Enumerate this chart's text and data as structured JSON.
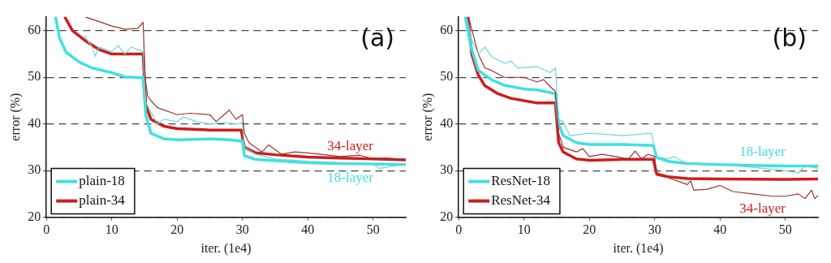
{
  "chart_data": [
    {
      "type": "line",
      "xlabel": "iter. (1e4)",
      "ylabel": "error (%)",
      "xlim": [
        0,
        55
      ],
      "ylim": [
        20,
        63
      ],
      "xticks": [
        0,
        10,
        20,
        30,
        40,
        50
      ],
      "yticks": [
        20,
        30,
        40,
        50,
        60
      ],
      "grid": "y",
      "legend": "bottom left",
      "annotations": [
        "(a)",
        "34-layer",
        "18-layer"
      ],
      "series": [
        {
          "color": "#a03030",
          "x": [
            6,
            8,
            10,
            11,
            12,
            14,
            14.8,
            15.1,
            15.5,
            16,
            17,
            20,
            22,
            25,
            26,
            28,
            29,
            30,
            30.3,
            31,
            33,
            34,
            36,
            38,
            40,
            42,
            45,
            48,
            50,
            52,
            55
          ],
          "values": [
            62.9,
            62,
            61,
            60.7,
            60.3,
            60.5,
            61.8,
            50,
            46,
            45,
            43.5,
            42,
            42.3,
            42,
            40.5,
            43,
            41,
            42,
            38,
            36,
            34,
            35.5,
            33.5,
            34,
            33.8,
            33.5,
            33,
            33.3,
            32.5,
            32.7,
            32.3
          ]
        },
        {
          "color": "#6ad8d8",
          "x": [
            5.8,
            7,
            7.5,
            8,
            10,
            11,
            12,
            13,
            14.8,
            15.1,
            16,
            17,
            18,
            20,
            21,
            23,
            25,
            27,
            29,
            30,
            30.3,
            32,
            35,
            40,
            45,
            50,
            51,
            55
          ],
          "values": [
            59,
            56.5,
            54.5,
            56.5,
            55.5,
            56.8,
            55,
            56.5,
            55.5,
            45,
            42.5,
            40,
            41,
            40.5,
            41.5,
            40.5,
            40,
            40.3,
            40,
            40.3,
            35,
            33.5,
            32.5,
            32,
            31.7,
            31.3,
            30.5,
            31.4
          ]
        },
        {
          "name": "plain-18",
          "color": "#40e0e0",
          "x": [
            1.4,
            2,
            3,
            5,
            7,
            10,
            12,
            14.8,
            15.2,
            16,
            18,
            20,
            25,
            28,
            30,
            30.3,
            32,
            35,
            40,
            45,
            50,
            55
          ],
          "values": [
            63,
            58.5,
            55.4,
            53.3,
            52,
            51,
            50.1,
            49.9,
            42,
            38,
            36.8,
            36.6,
            36.8,
            36.6,
            36.3,
            33.2,
            32.4,
            32.1,
            31.7,
            31.5,
            31.4,
            31.3
          ]
        },
        {
          "name": "plain-34",
          "color": "#d01c1c",
          "x": [
            2.8,
            4,
            6,
            8,
            10,
            12,
            14.8,
            15.2,
            16,
            18,
            20,
            25,
            29.8,
            30.3,
            32,
            35,
            40,
            45,
            50,
            55
          ],
          "values": [
            63,
            60,
            57.8,
            56,
            55,
            55,
            55,
            44,
            41,
            39.5,
            39,
            38.7,
            38.7,
            35,
            33.8,
            33.4,
            32.9,
            32.7,
            32.5,
            32.3
          ]
        }
      ]
    },
    {
      "type": "line",
      "xlabel": "iter. (1e4)",
      "ylabel": "error (%)",
      "xlim": [
        0,
        55
      ],
      "ylim": [
        20,
        63
      ],
      "xticks": [
        0,
        10,
        20,
        30,
        40,
        50
      ],
      "yticks": [
        20,
        30,
        40,
        50,
        60
      ],
      "grid": "y",
      "legend": "bottom left",
      "annotations": [
        "(b)",
        "18-layer",
        "34-layer"
      ],
      "series": [
        {
          "color": "#6ad8d8",
          "x": [
            1.2,
            2,
            3,
            4,
            5,
            7,
            8,
            9,
            12,
            14,
            14.8,
            15.3,
            16,
            17,
            20,
            25,
            29.5,
            30.3,
            32,
            33,
            35,
            40,
            45,
            50,
            52,
            53,
            55
          ],
          "values": [
            63,
            58,
            55,
            56.5,
            54.5,
            53,
            53.5,
            52,
            52.3,
            51,
            52,
            41,
            40.5,
            37.5,
            38,
            37.5,
            38,
            33,
            32.5,
            33,
            31.5,
            31.3,
            30.7,
            30,
            29.5,
            31,
            30.5
          ]
        },
        {
          "color": "#a03030",
          "x": [
            1.5,
            2,
            3,
            4,
            5,
            7,
            10,
            12,
            13,
            14,
            14.8,
            15.3,
            16,
            18,
            19,
            20,
            22,
            24,
            26,
            27,
            28,
            29,
            30,
            30.3,
            32,
            35,
            35.5,
            36,
            38,
            40,
            42,
            45,
            48,
            50,
            52,
            53,
            54,
            54.5,
            55
          ],
          "values": [
            63,
            null,
            55,
            52,
            51.5,
            50,
            50,
            49,
            49.5,
            48,
            47,
            38,
            35,
            34,
            34.7,
            33,
            33.5,
            33,
            32.5,
            34.2,
            32.5,
            33.5,
            33,
            29,
            28.5,
            27,
            27.8,
            25.8,
            26,
            26.8,
            25.5,
            25,
            24.5,
            24.5,
            25,
            24,
            25.8,
            24,
            24.7
          ]
        },
        {
          "name": "ResNet-18",
          "color": "#40e0e0",
          "x": [
            1,
            2,
            3,
            5,
            7,
            10,
            12,
            14.8,
            15.3,
            16,
            18,
            20,
            25,
            29.8,
            30.3,
            32,
            35,
            40,
            45,
            50,
            55
          ],
          "values": [
            63,
            56,
            51.5,
            49.5,
            48.3,
            47.5,
            47.3,
            46.5,
            40,
            37.5,
            36,
            35.6,
            35.6,
            35.4,
            32.8,
            32,
            31.5,
            31.3,
            31.1,
            31,
            31
          ]
        },
        {
          "name": "ResNet-34",
          "color": "#d01c1c",
          "x": [
            1.4,
            2,
            3,
            4,
            6,
            8,
            10,
            12,
            14.8,
            15.3,
            16,
            18,
            20,
            25,
            29.8,
            30.3,
            32,
            35,
            40,
            50,
            55
          ],
          "values": [
            63,
            55,
            50.5,
            48.2,
            46.5,
            45.5,
            45,
            44.5,
            44.5,
            36,
            34,
            32.5,
            32.2,
            32.4,
            32.4,
            29.3,
            28.7,
            28.3,
            28.2,
            28.1,
            28.2
          ]
        }
      ]
    }
  ]
}
